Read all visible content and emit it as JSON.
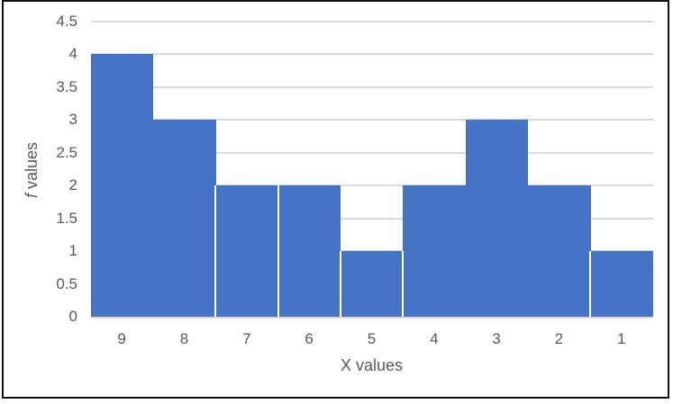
{
  "chart_data": {
    "type": "bar",
    "title": "",
    "categories": [
      "9",
      "8",
      "7",
      "6",
      "5",
      "4",
      "3",
      "2",
      "1"
    ],
    "values": [
      4,
      3,
      2,
      2,
      1,
      2,
      3,
      2,
      1
    ],
    "xlabel": "X values",
    "ylabel_italic_part": "f",
    "ylabel_rest_part": " values",
    "ylim": [
      0,
      4.5
    ],
    "ytick_step": 0.5,
    "ytick_labels": [
      "0",
      "0.5",
      "1",
      "1.5",
      "2",
      "2.5",
      "3",
      "3.5",
      "4",
      "4.5"
    ],
    "grid": "horizontal",
    "legend": "none",
    "bar_separators_after_category": [
      "8",
      "7",
      "6",
      "5",
      "2"
    ],
    "colors": {
      "bar": "#4472C4",
      "gridline": "#D9D9D9",
      "axis_line": "#D6D6D6",
      "tick_text": "#595959",
      "axis_title_text": "#595959",
      "frame_border": "#111111",
      "background": "#FFFFFF"
    }
  }
}
